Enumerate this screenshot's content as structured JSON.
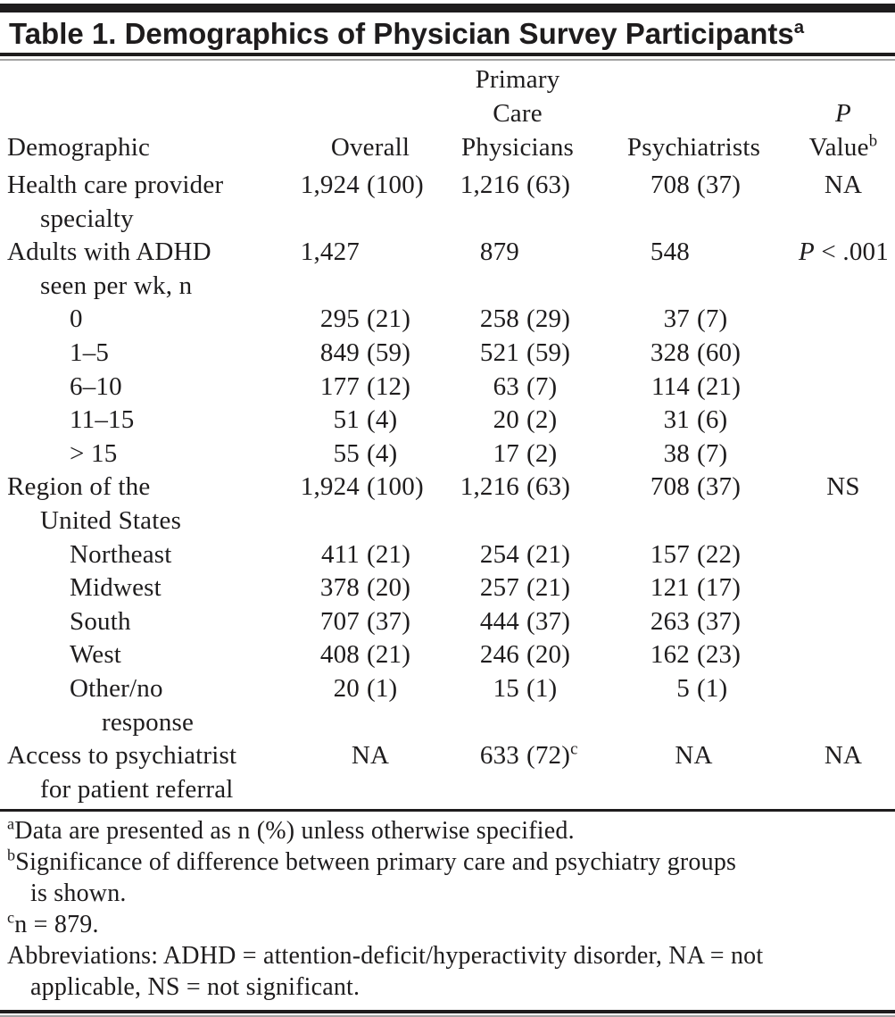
{
  "colors": {
    "ink": "#1e1c1d",
    "rule_light": "#a3a3a3",
    "background": "#ffffff"
  },
  "title": {
    "text": "Table 1. Demographics of Physician Survey Participants",
    "sup": "a"
  },
  "table": {
    "header": {
      "demographic": "Demographic",
      "overall": "Overall",
      "pcp_lines": [
        "Primary",
        "Care",
        "Physicians"
      ],
      "psychiatrists": "Psychiatrists",
      "p_italic": "P",
      "p_value_word": "Value",
      "p_sup": "b"
    },
    "rows": [
      {
        "label_lines": [
          "Health care provider",
          "specialty"
        ],
        "indent": 0,
        "overall": {
          "n": "1,924",
          "p": "(100)"
        },
        "pcp": {
          "n": "1,216",
          "p": "(63)"
        },
        "psych": {
          "n": "708",
          "p": "(37)"
        },
        "pval": {
          "text": "NA"
        }
      },
      {
        "label_lines": [
          "Adults with ADHD",
          "seen per wk, n"
        ],
        "indent": 0,
        "overall": {
          "n": "1,427"
        },
        "pcp": {
          "n": "879"
        },
        "psych": {
          "n": "548"
        },
        "pval": {
          "italic": "P",
          "text": " < .001"
        }
      },
      {
        "label_lines": [
          "0"
        ],
        "indent": 2,
        "overall": {
          "n": "295",
          "p": "(21)"
        },
        "pcp": {
          "n": "258",
          "p": "(29)"
        },
        "psych": {
          "n": "37",
          "p": "(7)"
        }
      },
      {
        "label_lines": [
          "1–5"
        ],
        "indent": 2,
        "overall": {
          "n": "849",
          "p": "(59)"
        },
        "pcp": {
          "n": "521",
          "p": "(59)"
        },
        "psych": {
          "n": "328",
          "p": "(60)"
        }
      },
      {
        "label_lines": [
          "6–10"
        ],
        "indent": 2,
        "overall": {
          "n": "177",
          "p": "(12)"
        },
        "pcp": {
          "n": "63",
          "p": "(7)"
        },
        "psych": {
          "n": "114",
          "p": "(21)"
        }
      },
      {
        "label_lines": [
          "11–15"
        ],
        "indent": 2,
        "overall": {
          "n": "51",
          "p": "(4)"
        },
        "pcp": {
          "n": "20",
          "p": "(2)"
        },
        "psych": {
          "n": "31",
          "p": "(6)"
        }
      },
      {
        "label_lines": [
          "> 15"
        ],
        "indent": 2,
        "overall": {
          "n": "55",
          "p": "(4)"
        },
        "pcp": {
          "n": "17",
          "p": "(2)"
        },
        "psych": {
          "n": "38",
          "p": "(7)"
        }
      },
      {
        "label_lines": [
          "Region of the",
          "United States"
        ],
        "indent": 0,
        "overall": {
          "n": "1,924",
          "p": "(100)"
        },
        "pcp": {
          "n": "1,216",
          "p": "(63)"
        },
        "psych": {
          "n": "708",
          "p": "(37)"
        },
        "pval": {
          "text": "NS"
        }
      },
      {
        "label_lines": [
          "Northeast"
        ],
        "indent": 2,
        "overall": {
          "n": "411",
          "p": "(21)"
        },
        "pcp": {
          "n": "254",
          "p": "(21)"
        },
        "psych": {
          "n": "157",
          "p": "(22)"
        }
      },
      {
        "label_lines": [
          "Midwest"
        ],
        "indent": 2,
        "overall": {
          "n": "378",
          "p": "(20)"
        },
        "pcp": {
          "n": "257",
          "p": "(21)"
        },
        "psych": {
          "n": "121",
          "p": "(17)"
        }
      },
      {
        "label_lines": [
          "South"
        ],
        "indent": 2,
        "overall": {
          "n": "707",
          "p": "(37)"
        },
        "pcp": {
          "n": "444",
          "p": "(37)"
        },
        "psych": {
          "n": "263",
          "p": "(37)"
        }
      },
      {
        "label_lines": [
          "West"
        ],
        "indent": 2,
        "overall": {
          "n": "408",
          "p": "(21)"
        },
        "pcp": {
          "n": "246",
          "p": "(20)"
        },
        "psych": {
          "n": "162",
          "p": "(23)"
        }
      },
      {
        "label_lines": [
          "Other/no",
          "response"
        ],
        "indent": 2,
        "overall": {
          "n": "20",
          "p": "(1)"
        },
        "pcp": {
          "n": "15",
          "p": "(1)"
        },
        "psych": {
          "n": "5",
          "p": "(1)"
        }
      },
      {
        "label_lines": [
          "Access to psychiatrist",
          "for patient referral"
        ],
        "indent": 0,
        "overall": {
          "center": "NA"
        },
        "pcp": {
          "n": "633",
          "p": "(72)",
          "sup": "c"
        },
        "psych": {
          "center": "NA"
        },
        "pval": {
          "text": "NA"
        }
      }
    ]
  },
  "footnotes": [
    {
      "sup": "a",
      "lines": [
        "Data are presented as n (%) unless otherwise specified."
      ]
    },
    {
      "sup": "b",
      "lines": [
        "Significance of difference between primary care and psychiatry groups",
        "is shown."
      ]
    },
    {
      "sup": "c",
      "lines": [
        "n = 879."
      ]
    },
    {
      "sup": "",
      "lines": [
        "Abbreviations: ADHD = attention-deficit/hyperactivity disorder, NA = not",
        "applicable, NS = not significant."
      ]
    }
  ]
}
